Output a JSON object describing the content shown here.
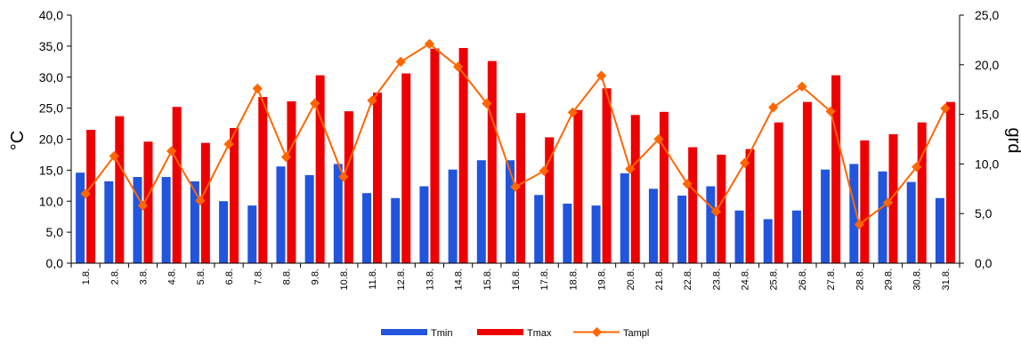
{
  "chart_data": {
    "type": "bar",
    "categories": [
      "1.8.",
      "2.8.",
      "3.8.",
      "4.8.",
      "5.8.",
      "6.8.",
      "7.8.",
      "8.8.",
      "9.8.",
      "10.8.",
      "11.8.",
      "12.8.",
      "13.8.",
      "14.8.",
      "15.8.",
      "16.8.",
      "17.8.",
      "18.8.",
      "19.8.",
      "20.8.",
      "21.8.",
      "22.8.",
      "23.8.",
      "24.8.",
      "25.8.",
      "26.8.",
      "27.8.",
      "28.8.",
      "29.8.",
      "30.8.",
      "31.8."
    ],
    "series": [
      {
        "name": "Tmin",
        "type": "bar",
        "axis": "left",
        "color": "#2255dd",
        "values": [
          14.6,
          13.2,
          13.9,
          13.9,
          13.2,
          10.0,
          9.3,
          15.6,
          14.2,
          16.0,
          11.3,
          10.5,
          12.4,
          15.1,
          16.6,
          16.6,
          11.0,
          9.6,
          9.3,
          14.5,
          12.0,
          10.9,
          12.4,
          8.5,
          7.1,
          8.5,
          15.1,
          16.0,
          14.8,
          13.1,
          10.5
        ]
      },
      {
        "name": "Tmax",
        "type": "bar",
        "axis": "left",
        "color": "#ee0000",
        "values": [
          21.5,
          23.7,
          19.6,
          25.2,
          19.4,
          21.8,
          26.8,
          26.1,
          30.3,
          24.5,
          27.5,
          30.6,
          34.6,
          34.7,
          32.6,
          24.2,
          20.3,
          24.7,
          28.2,
          23.9,
          24.4,
          18.7,
          17.5,
          18.4,
          22.7,
          26.0,
          30.3,
          19.8,
          20.8,
          22.7,
          26.0
        ]
      },
      {
        "name": "Tampl",
        "type": "line",
        "axis": "right",
        "color": "#ff6600",
        "values": [
          7.0,
          10.8,
          5.8,
          11.3,
          6.3,
          12.0,
          17.6,
          10.7,
          16.1,
          8.7,
          16.4,
          20.3,
          22.1,
          19.8,
          16.1,
          7.7,
          9.3,
          15.2,
          18.9,
          9.5,
          12.5,
          8.0,
          5.2,
          10.1,
          15.7,
          17.8,
          15.3,
          3.9,
          6.1,
          9.7,
          15.6
        ]
      }
    ],
    "ylabel": "°C",
    "ylabel_right": "grd",
    "ylim": [
      0,
      40
    ],
    "ylim_right": [
      0,
      25
    ],
    "y_ticks": [
      "0,0",
      "5,0",
      "10,0",
      "15,0",
      "20,0",
      "25,0",
      "30,0",
      "35,0",
      "40,0"
    ],
    "y_ticks_right": [
      "0,0",
      "5,0",
      "10,0",
      "15,0",
      "20,0",
      "25,0"
    ],
    "grid": false,
    "legend_position": "bottom"
  }
}
